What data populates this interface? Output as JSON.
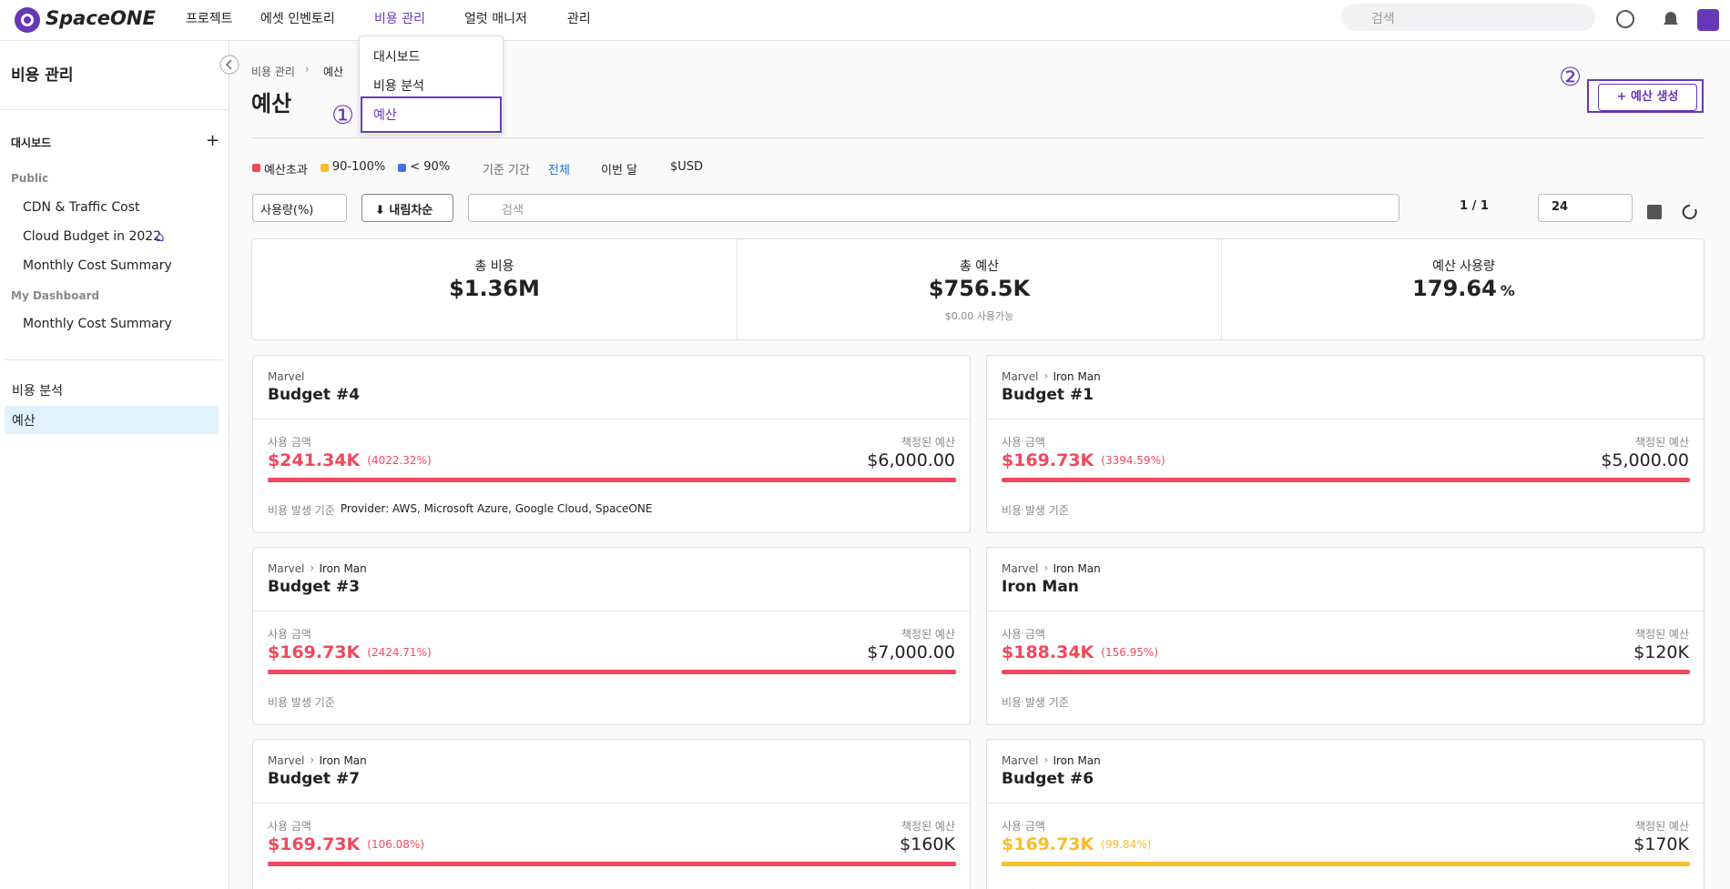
{
  "header": {
    "logo": "SpaceONE",
    "nav": [
      "프로젝트",
      "에셋 인벤토리",
      "비용 관리",
      "얼럿 매니저",
      "관리"
    ],
    "search_placeholder": "검색"
  },
  "dropdown": {
    "items": [
      "대시보드",
      "비용 분석",
      "예산"
    ]
  },
  "sidebar": {
    "title": "비용 관리",
    "dashboard_label": "대시보드",
    "public_label": "Public",
    "public_items": [
      "CDN & Traffic Cost",
      "Cloud Budget in 2022",
      "Monthly Cost Summary"
    ],
    "my_label": "My Dashboard",
    "my_items": [
      "Monthly Cost Summary"
    ],
    "menu": [
      "비용 분석",
      "예산"
    ]
  },
  "page": {
    "breadcrumb": [
      "비용 관리",
      "예산"
    ],
    "title": "예산",
    "create_button": "+ 예산 생성",
    "annotations": [
      "①",
      "②"
    ]
  },
  "filters": {
    "legend": [
      {
        "label": "예산초과",
        "color": "#f1485c"
      },
      {
        "label": "90-100%",
        "color": "#fbbd29"
      },
      {
        "label": "< 90%",
        "color": "#4c6ee0"
      }
    ],
    "period_label": "기준 기간",
    "period_options": [
      "전체",
      "이번 달"
    ],
    "currency": "$USD"
  },
  "toolbar": {
    "sort_field": "사용량(%)",
    "sort_order": "⬇ 내림차순",
    "search_placeholder": "검색",
    "pagination": "1 / 1",
    "page_size": "24"
  },
  "summary": [
    {
      "label": "총 비용",
      "value": "$1.36M"
    },
    {
      "label": "총 예산",
      "value": "$756.5K",
      "note": "$0.00 사용가능"
    },
    {
      "label": "예산 사용량",
      "value": "179.64",
      "unit": "%"
    }
  ],
  "cards": [
    {
      "path": [
        "Marvel"
      ],
      "name": "Budget #4",
      "used_label": "사용 금액",
      "used": "$241.34K",
      "pct": "(4022.32%)",
      "budget_label": "책정된 예산",
      "budget": "$6,000.00",
      "color": "#f1485c",
      "criterion_label": "비용 발생 기준",
      "criterion": "Provider: AWS, Microsoft Azure, Google Cloud, SpaceONE"
    },
    {
      "path": [
        "Marvel",
        "Iron Man"
      ],
      "name": "Budget #1",
      "used_label": "사용 금액",
      "used": "$169.73K",
      "pct": "(3394.59%)",
      "budget_label": "책정된 예산",
      "budget": "$5,000.00",
      "color": "#f1485c",
      "criterion_label": "비용 발생 기준"
    },
    {
      "path": [
        "Marvel",
        "Iron Man"
      ],
      "name": "Budget #3",
      "used_label": "사용 금액",
      "used": "$169.73K",
      "pct": "(2424.71%)",
      "budget_label": "책정된 예산",
      "budget": "$7,000.00",
      "color": "#f1485c",
      "criterion_label": "비용 발생 기준"
    },
    {
      "path": [
        "Marvel",
        "Iron Man"
      ],
      "name": "Iron Man",
      "used_label": "사용 금액",
      "used": "$188.34K",
      "pct": "(156.95%)",
      "budget_label": "책정된 예산",
      "budget": "$120K",
      "color": "#f1485c",
      "criterion_label": "비용 발생 기준"
    },
    {
      "path": [
        "Marvel",
        "Iron Man"
      ],
      "name": "Budget #7",
      "used_label": "사용 금액",
      "used": "$169.73K",
      "pct": "(106.08%)",
      "budget_label": "책정된 예산",
      "budget": "$160K",
      "color": "#f1485c",
      "criterion_label": "비용 발생 기준"
    },
    {
      "path": [
        "Marvel",
        "Iron Man"
      ],
      "name": "Budget #6",
      "used_label": "사용 금액",
      "used": "$169.73K",
      "pct": "(99.84%)",
      "budget_label": "책정된 예산",
      "budget": "$170K",
      "color": "#fbbd29",
      "criterion_label": "비용 발생 기준"
    }
  ]
}
